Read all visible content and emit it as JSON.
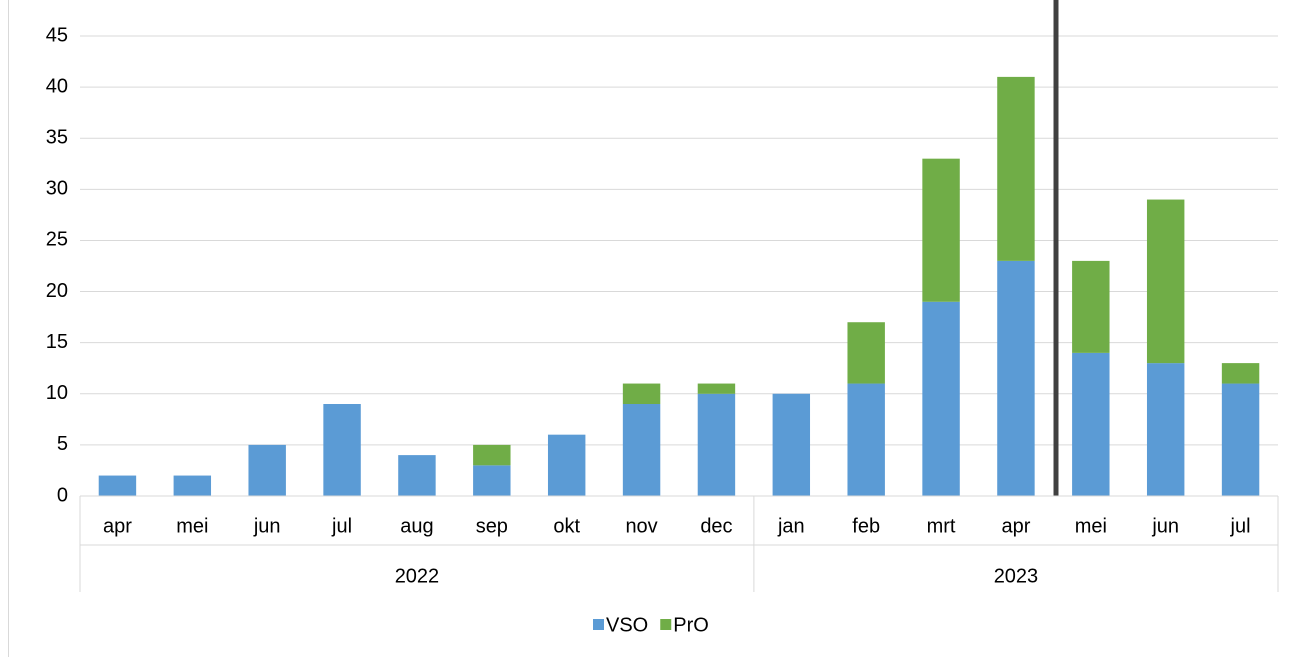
{
  "chart_data": {
    "type": "stacked_bar",
    "groups": [
      {
        "name": "2022",
        "categories": [
          "apr",
          "mei",
          "jun",
          "jul",
          "aug",
          "sep",
          "okt",
          "nov",
          "dec"
        ]
      },
      {
        "name": "2023",
        "categories": [
          "jan",
          "feb",
          "mrt",
          "apr",
          "mei",
          "jun",
          "jul"
        ]
      }
    ],
    "series": [
      {
        "name": "VSO",
        "color": "#5b9bd5",
        "values": [
          2,
          2,
          5,
          9,
          4,
          3,
          6,
          9,
          10,
          10,
          11,
          19,
          23,
          14,
          13,
          11
        ]
      },
      {
        "name": "PrO",
        "color": "#70ad47",
        "values": [
          0,
          0,
          0,
          0,
          0,
          2,
          0,
          2,
          1,
          0,
          6,
          14,
          18,
          9,
          16,
          2
        ]
      }
    ],
    "ylim": [
      0,
      45
    ],
    "yticks": [
      0,
      5,
      10,
      15,
      20,
      25,
      30,
      35,
      40,
      45
    ],
    "grid": true,
    "legend": "bottom"
  }
}
